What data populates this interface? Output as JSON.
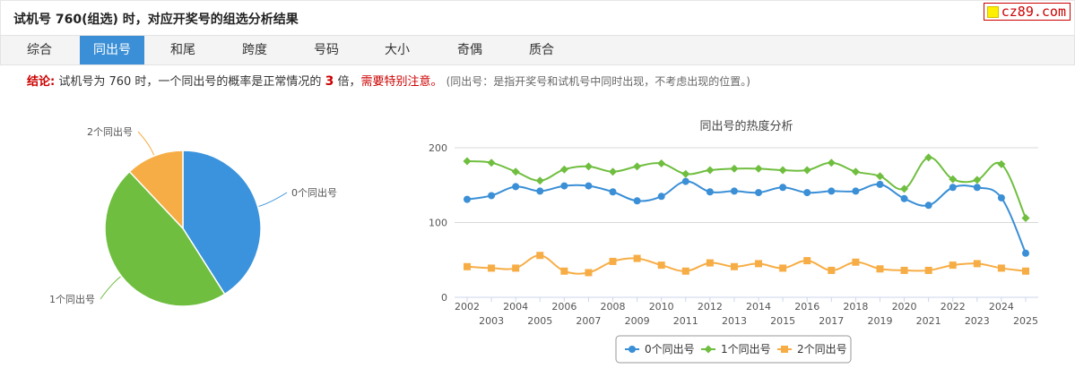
{
  "header": {
    "title": "试机号 760(组选) 时，对应开奖号的组选分析结果",
    "brand": "cz89.com"
  },
  "tabs": [
    {
      "label": "综合",
      "active": false
    },
    {
      "label": "同出号",
      "active": true
    },
    {
      "label": "和尾",
      "active": false
    },
    {
      "label": "跨度",
      "active": false
    },
    {
      "label": "号码",
      "active": false
    },
    {
      "label": "大小",
      "active": false
    },
    {
      "label": "奇偶",
      "active": false
    },
    {
      "label": "质合",
      "active": false
    }
  ],
  "conclusion": {
    "label": "结论:",
    "text_before": "试机号为 760 时，一个同出号的概率是正常情况的",
    "multiple": "3",
    "text_after": "倍，",
    "warning": "需要特别注意。",
    "note": "(同出号：是指开奖号和试机号中同时出现，不考虑出现的位置。)"
  },
  "chart_data": [
    {
      "type": "pie",
      "labels": [
        "0个同出号",
        "1个同出号",
        "2个同出号"
      ],
      "values": [
        41,
        47,
        12
      ],
      "colors": [
        "#3a93dc",
        "#6fbe3f",
        "#f7ad45"
      ]
    },
    {
      "type": "line",
      "title": "同出号的热度分析",
      "x": [
        2002,
        2003,
        2004,
        2005,
        2006,
        2007,
        2008,
        2009,
        2010,
        2011,
        2012,
        2013,
        2014,
        2015,
        2016,
        2017,
        2018,
        2019,
        2020,
        2021,
        2022,
        2023,
        2024,
        2025
      ],
      "ylim": [
        0,
        200
      ],
      "yticks": [
        0,
        100,
        200
      ],
      "grid": true,
      "legend_position": "bottom",
      "series": [
        {
          "name": "0个同出号",
          "color": "#3a8fd6",
          "marker": "circle",
          "values": [
            131,
            136,
            148,
            142,
            149,
            149,
            141,
            129,
            135,
            155,
            141,
            142,
            140,
            147,
            140,
            142,
            142,
            151,
            132,
            123,
            147,
            147,
            133,
            59
          ]
        },
        {
          "name": "1个同出号",
          "color": "#6fbe3f",
          "marker": "diamond",
          "values": [
            182,
            180,
            168,
            156,
            171,
            175,
            168,
            175,
            179,
            165,
            170,
            172,
            172,
            170,
            170,
            180,
            168,
            162,
            145,
            187,
            158,
            157,
            178,
            106
          ]
        },
        {
          "name": "2个同出号",
          "color": "#f7ad45",
          "marker": "square",
          "values": [
            41,
            39,
            39,
            56,
            35,
            33,
            48,
            52,
            43,
            35,
            46,
            41,
            45,
            39,
            49,
            36,
            47,
            38,
            36,
            36,
            43,
            45,
            39,
            35
          ]
        }
      ]
    }
  ]
}
